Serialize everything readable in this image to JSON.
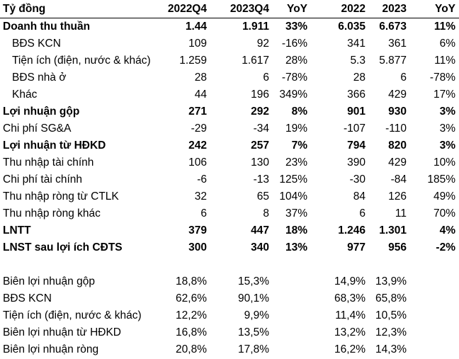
{
  "headers": [
    "Tỷ đồng",
    "2022Q4",
    "2023Q4",
    "YoY",
    "2022",
    "2023",
    "YoY"
  ],
  "rows": [
    {
      "label": "Doanh thu thuần",
      "bold": true,
      "indent": false,
      "values": [
        "1.44",
        "1.911",
        "33%",
        "6.035",
        "6.673",
        "11%"
      ]
    },
    {
      "label": "BĐS KCN",
      "bold": false,
      "indent": true,
      "values": [
        "109",
        "92",
        "-16%",
        "341",
        "361",
        "6%"
      ]
    },
    {
      "label": "Tiện ích (điện, nước & khác)",
      "bold": false,
      "indent": true,
      "values": [
        "1.259",
        "1.617",
        "28%",
        "5.3",
        "5.877",
        "11%"
      ]
    },
    {
      "label": "BĐS nhà ở",
      "bold": false,
      "indent": true,
      "values": [
        "28",
        "6",
        "-78%",
        "28",
        "6",
        "-78%"
      ]
    },
    {
      "label": "Khác",
      "bold": false,
      "indent": true,
      "values": [
        "44",
        "196",
        "349%",
        "366",
        "429",
        "17%"
      ]
    },
    {
      "label": "Lợi nhuận gộp",
      "bold": true,
      "indent": false,
      "values": [
        "271",
        "292",
        "8%",
        "901",
        "930",
        "3%"
      ]
    },
    {
      "label": "Chi phí SG&A",
      "bold": false,
      "indent": false,
      "values": [
        "-29",
        "-34",
        "19%",
        "-107",
        "-110",
        "3%"
      ]
    },
    {
      "label": "Lợi nhuận từ HĐKD",
      "bold": true,
      "indent": false,
      "values": [
        "242",
        "257",
        "7%",
        "794",
        "820",
        "3%"
      ]
    },
    {
      "label": "Thu nhập tài chính",
      "bold": false,
      "indent": false,
      "values": [
        "106",
        "130",
        "23%",
        "390",
        "429",
        "10%"
      ]
    },
    {
      "label": "Chi phí tài chính",
      "bold": false,
      "indent": false,
      "values": [
        "-6",
        "-13",
        "125%",
        "-30",
        "-84",
        "185%"
      ]
    },
    {
      "label": "Thu nhập ròng từ CTLK",
      "bold": false,
      "indent": false,
      "values": [
        "32",
        "65",
        "104%",
        "84",
        "126",
        "49%"
      ]
    },
    {
      "label": "Thu nhập ròng khác",
      "bold": false,
      "indent": false,
      "values": [
        "6",
        "8",
        "37%",
        "6",
        "11",
        "70%"
      ]
    },
    {
      "label": "LNTT",
      "bold": true,
      "indent": false,
      "values": [
        "379",
        "447",
        "18%",
        "1.246",
        "1.301",
        "4%"
      ]
    },
    {
      "label": "LNST sau lợi ích CĐTS",
      "bold": true,
      "indent": false,
      "values": [
        "300",
        "340",
        "13%",
        "977",
        "956",
        "-2%"
      ]
    }
  ],
  "margins": [
    {
      "label": "Biên lợi nhuận gộp",
      "values": [
        "18,8%",
        "15,3%",
        "",
        "14,9%",
        "13,9%",
        ""
      ]
    },
    {
      "label": "BĐS KCN",
      "values": [
        "62,6%",
        "90,1%",
        "",
        "68,3%",
        "65,8%",
        ""
      ]
    },
    {
      "label": "Tiện ích (điện, nước & khác)",
      "values": [
        "12,2%",
        "9,9%",
        "",
        "11,4%",
        "10,5%",
        ""
      ]
    },
    {
      "label": "Biên lợi nhuận từ HĐKD",
      "values": [
        "16,8%",
        "13,5%",
        "",
        "13,2%",
        "12,3%",
        ""
      ]
    },
    {
      "label": "Biên lợi nhuận ròng",
      "values": [
        "20,8%",
        "17,8%",
        "",
        "16,2%",
        "14,3%",
        ""
      ]
    }
  ]
}
